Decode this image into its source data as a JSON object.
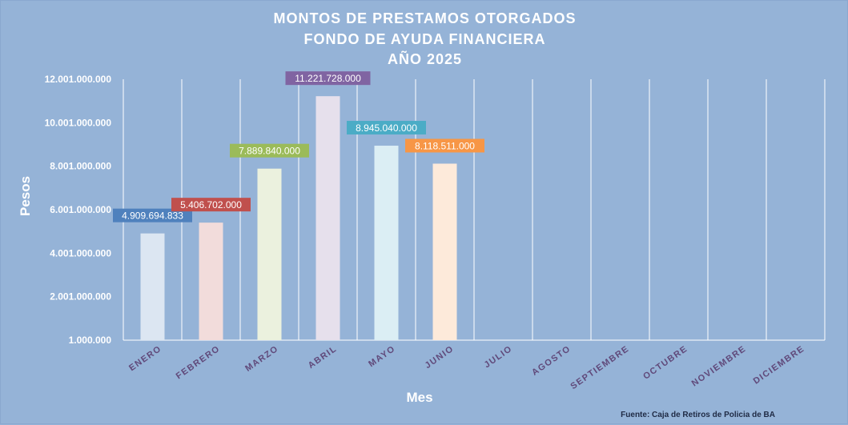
{
  "chart_data": {
    "type": "bar",
    "title_lines": [
      "MONTOS DE PRESTAMOS  OTORGADOS",
      "FONDO DE AYUDA FINANCIERA",
      "AÑO  2025"
    ],
    "xlabel": "Mes",
    "ylabel": "Pesos",
    "source": "Fuente: Caja de Retiros de Policia de BA",
    "categories": [
      "ENERO",
      "FEBRERO",
      "MARZO",
      "ABRIL",
      "MAYO",
      "JUNIO",
      "JULIO",
      "AGOSTO",
      "SEPTIEMBRE",
      "OCTUBRE",
      "NOVIEMBRE",
      "DICIEMBRE"
    ],
    "values": [
      4909694833,
      5406702000,
      7889840000,
      11221728000,
      8945040000,
      8118511000,
      null,
      null,
      null,
      null,
      null,
      null
    ],
    "data_labels": [
      "4.909.694.833",
      "5.406.702.000",
      "7.889.840.000",
      "11.221.728.000",
      "8.945.040.000",
      "8.118.511.000",
      "",
      "",
      "",
      "",
      "",
      ""
    ],
    "ylim": [
      1000000,
      12001000000
    ],
    "yticks": [
      1000000,
      2001000000,
      4001000000,
      6001000000,
      8001000000,
      10001000000,
      12001000000
    ],
    "ytick_labels": [
      "1.000.000",
      "2.001.000.000",
      "4.001.000.000",
      "6.001.000.000",
      "8.001.000.000",
      "10.001.000.000",
      "12.001.000.000"
    ],
    "grid": "vertical",
    "legend": "none"
  },
  "colors": {
    "background": "#95b3d7",
    "bars": [
      "#dce6f2",
      "#f2dcdb",
      "#ebf1de",
      "#e6e0ec",
      "#dbeef4",
      "#fdeada"
    ],
    "labels": [
      "#4f81bd",
      "#c0504d",
      "#9bbb59",
      "#8064a2",
      "#4bacc6",
      "#f79646"
    ],
    "tick_text": "#ffffff",
    "category_text": "#60497a"
  }
}
